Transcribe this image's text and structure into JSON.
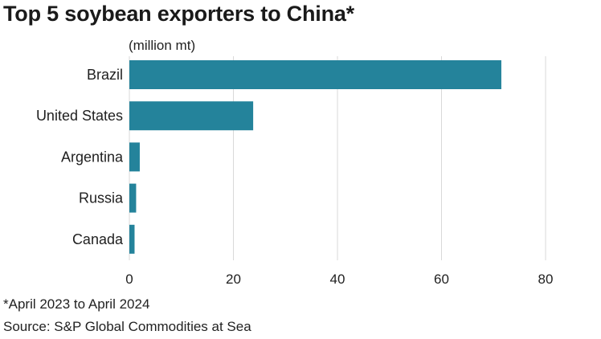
{
  "chart_data": {
    "type": "bar",
    "orientation": "horizontal",
    "title": "Top 5 soybean exporters to China*",
    "unit_label": "(million mt)",
    "categories": [
      "Brazil",
      "United States",
      "Argentina",
      "Russia",
      "Canada"
    ],
    "values": [
      71.5,
      23.8,
      2.0,
      1.3,
      1.0
    ],
    "xlim": [
      0,
      80
    ],
    "xticks": [
      0,
      20,
      40,
      60,
      80
    ],
    "grid": "vertical",
    "bar_color": "#24839b",
    "footnote": "*April 2023 to April 2024",
    "source": "Source: S&P Global Commodities at Sea"
  }
}
